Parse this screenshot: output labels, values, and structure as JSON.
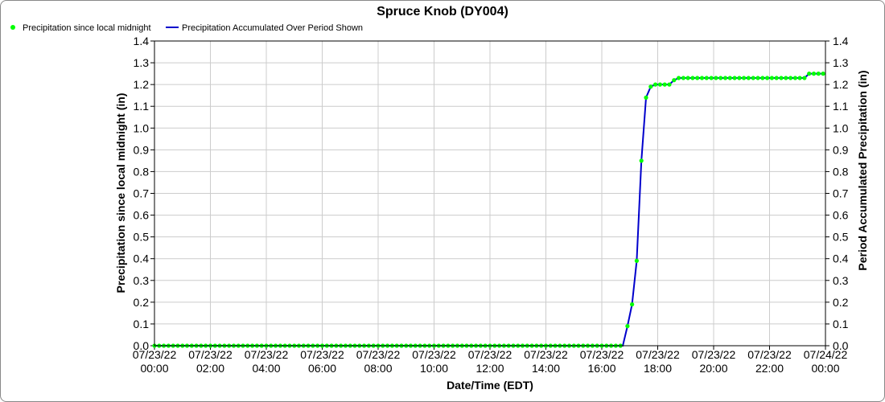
{
  "chart_data": {
    "type": "line",
    "title": "Spruce Knob (DY004)",
    "xlabel": "Date/Time (EDT)",
    "ylabel_left": "Precipitation since local midnight (in)",
    "ylabel_right": "Period Accumulated Precipitation (in)",
    "ylim": [
      0,
      1.4
    ],
    "y_ticks": [
      "0.0",
      "0.1",
      "0.2",
      "0.3",
      "0.4",
      "0.5",
      "0.6",
      "0.7",
      "0.8",
      "0.9",
      "1.0",
      "1.1",
      "1.2",
      "1.3",
      "1.4"
    ],
    "xlim": [
      "07/23/22 00:00",
      "07/24/22 00:00"
    ],
    "x_ticks": [
      {
        "date": "07/23/22",
        "time": "00:00"
      },
      {
        "date": "07/23/22",
        "time": "02:00"
      },
      {
        "date": "07/23/22",
        "time": "04:00"
      },
      {
        "date": "07/23/22",
        "time": "06:00"
      },
      {
        "date": "07/23/22",
        "time": "08:00"
      },
      {
        "date": "07/23/22",
        "time": "10:00"
      },
      {
        "date": "07/23/22",
        "time": "12:00"
      },
      {
        "date": "07/23/22",
        "time": "14:00"
      },
      {
        "date": "07/23/22",
        "time": "16:00"
      },
      {
        "date": "07/23/22",
        "time": "18:00"
      },
      {
        "date": "07/23/22",
        "time": "20:00"
      },
      {
        "date": "07/23/22",
        "time": "22:00"
      },
      {
        "date": "07/24/22",
        "time": "00:00"
      }
    ],
    "grid": true,
    "legend_position": "top-left",
    "series": [
      {
        "name": "Precipitation since local midnight",
        "style": "markers",
        "color": "#00ff00",
        "points": [
          [
            "00:00",
            0
          ],
          [
            "00:10",
            0
          ],
          [
            "00:20",
            0
          ],
          [
            "00:30",
            0
          ],
          [
            "00:40",
            0
          ],
          [
            "00:50",
            0
          ],
          [
            "01:00",
            0
          ],
          [
            "01:10",
            0
          ],
          [
            "01:20",
            0
          ],
          [
            "01:30",
            0
          ],
          [
            "01:40",
            0
          ],
          [
            "01:50",
            0
          ],
          [
            "02:00",
            0
          ],
          [
            "02:10",
            0
          ],
          [
            "02:20",
            0
          ],
          [
            "02:30",
            0
          ],
          [
            "02:40",
            0
          ],
          [
            "02:50",
            0
          ],
          [
            "03:00",
            0
          ],
          [
            "03:10",
            0
          ],
          [
            "03:20",
            0
          ],
          [
            "03:30",
            0
          ],
          [
            "03:40",
            0
          ],
          [
            "03:50",
            0
          ],
          [
            "04:00",
            0
          ],
          [
            "04:10",
            0
          ],
          [
            "04:20",
            0
          ],
          [
            "04:30",
            0
          ],
          [
            "04:40",
            0
          ],
          [
            "04:50",
            0
          ],
          [
            "05:00",
            0
          ],
          [
            "05:10",
            0
          ],
          [
            "05:20",
            0
          ],
          [
            "05:30",
            0
          ],
          [
            "05:40",
            0
          ],
          [
            "05:50",
            0
          ],
          [
            "06:00",
            0
          ],
          [
            "06:10",
            0
          ],
          [
            "06:20",
            0
          ],
          [
            "06:30",
            0
          ],
          [
            "06:40",
            0
          ],
          [
            "06:50",
            0
          ],
          [
            "07:00",
            0
          ],
          [
            "07:10",
            0
          ],
          [
            "07:20",
            0
          ],
          [
            "07:30",
            0
          ],
          [
            "07:40",
            0
          ],
          [
            "07:50",
            0
          ],
          [
            "08:00",
            0
          ],
          [
            "08:10",
            0
          ],
          [
            "08:20",
            0
          ],
          [
            "08:30",
            0
          ],
          [
            "08:40",
            0
          ],
          [
            "08:50",
            0
          ],
          [
            "09:00",
            0
          ],
          [
            "09:10",
            0
          ],
          [
            "09:20",
            0
          ],
          [
            "09:30",
            0
          ],
          [
            "09:40",
            0
          ],
          [
            "09:50",
            0
          ],
          [
            "10:00",
            0
          ],
          [
            "10:10",
            0
          ],
          [
            "10:20",
            0
          ],
          [
            "10:30",
            0
          ],
          [
            "10:40",
            0
          ],
          [
            "10:50",
            0
          ],
          [
            "11:00",
            0
          ],
          [
            "11:10",
            0
          ],
          [
            "11:20",
            0
          ],
          [
            "11:30",
            0
          ],
          [
            "11:40",
            0
          ],
          [
            "11:50",
            0
          ],
          [
            "12:00",
            0
          ],
          [
            "12:10",
            0
          ],
          [
            "12:20",
            0
          ],
          [
            "12:30",
            0
          ],
          [
            "12:40",
            0
          ],
          [
            "12:50",
            0
          ],
          [
            "13:00",
            0
          ],
          [
            "13:10",
            0
          ],
          [
            "13:20",
            0
          ],
          [
            "13:30",
            0
          ],
          [
            "13:40",
            0
          ],
          [
            "13:50",
            0
          ],
          [
            "14:00",
            0
          ],
          [
            "14:10",
            0
          ],
          [
            "14:20",
            0
          ],
          [
            "14:30",
            0
          ],
          [
            "14:40",
            0
          ],
          [
            "14:50",
            0
          ],
          [
            "15:00",
            0
          ],
          [
            "15:10",
            0
          ],
          [
            "15:20",
            0
          ],
          [
            "15:30",
            0
          ],
          [
            "15:40",
            0
          ],
          [
            "15:50",
            0
          ],
          [
            "16:00",
            0
          ],
          [
            "16:10",
            0
          ],
          [
            "16:20",
            0
          ],
          [
            "16:30",
            0
          ],
          [
            "16:40",
            0
          ],
          [
            "16:55",
            0.09
          ],
          [
            "17:05",
            0.19
          ],
          [
            "17:15",
            0.39
          ],
          [
            "17:25",
            0.85
          ],
          [
            "17:35",
            1.14
          ],
          [
            "17:45",
            1.19
          ],
          [
            "17:55",
            1.2
          ],
          [
            "18:05",
            1.2
          ],
          [
            "18:15",
            1.2
          ],
          [
            "18:25",
            1.2
          ],
          [
            "18:35",
            1.22
          ],
          [
            "18:45",
            1.23
          ],
          [
            "18:55",
            1.23
          ],
          [
            "19:05",
            1.23
          ],
          [
            "19:15",
            1.23
          ],
          [
            "19:25",
            1.23
          ],
          [
            "19:35",
            1.23
          ],
          [
            "19:45",
            1.23
          ],
          [
            "19:55",
            1.23
          ],
          [
            "20:05",
            1.23
          ],
          [
            "20:15",
            1.23
          ],
          [
            "20:25",
            1.23
          ],
          [
            "20:35",
            1.23
          ],
          [
            "20:45",
            1.23
          ],
          [
            "20:55",
            1.23
          ],
          [
            "21:05",
            1.23
          ],
          [
            "21:15",
            1.23
          ],
          [
            "21:25",
            1.23
          ],
          [
            "21:35",
            1.23
          ],
          [
            "21:45",
            1.23
          ],
          [
            "21:55",
            1.23
          ],
          [
            "22:05",
            1.23
          ],
          [
            "22:15",
            1.23
          ],
          [
            "22:25",
            1.23
          ],
          [
            "22:35",
            1.23
          ],
          [
            "22:45",
            1.23
          ],
          [
            "22:55",
            1.23
          ],
          [
            "23:05",
            1.23
          ],
          [
            "23:15",
            1.23
          ],
          [
            "23:25",
            1.25
          ],
          [
            "23:35",
            1.25
          ],
          [
            "23:45",
            1.25
          ],
          [
            "23:55",
            1.25
          ]
        ]
      },
      {
        "name": "Precipitation Accumulated Over Period Shown",
        "style": "line",
        "color": "#0000cc",
        "points": [
          [
            "00:00",
            0
          ],
          [
            "16:45",
            0
          ],
          [
            "16:55",
            0.09
          ],
          [
            "17:05",
            0.19
          ],
          [
            "17:15",
            0.39
          ],
          [
            "17:25",
            0.85
          ],
          [
            "17:35",
            1.14
          ],
          [
            "17:45",
            1.19
          ],
          [
            "17:55",
            1.2
          ],
          [
            "18:25",
            1.2
          ],
          [
            "18:35",
            1.22
          ],
          [
            "18:45",
            1.23
          ],
          [
            "23:15",
            1.23
          ],
          [
            "23:25",
            1.25
          ],
          [
            "23:59",
            1.25
          ]
        ]
      }
    ]
  }
}
